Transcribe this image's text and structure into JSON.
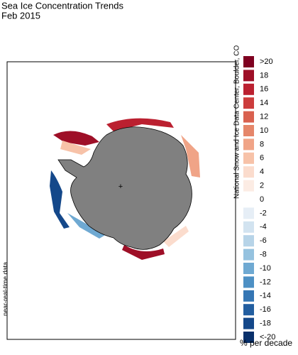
{
  "title": "Sea Ice Concentration Trends",
  "subtitle": "Feb 2015",
  "credit": "National Snow and Ice Data Center, Boulder, CO",
  "note": "near-real-time data",
  "legend": {
    "unit": "% per decade",
    "items": [
      {
        "label": ">20",
        "color": "#7f0020"
      },
      {
        "label": "18",
        "color": "#9e0f27"
      },
      {
        "label": "16",
        "color": "#bb2030"
      },
      {
        "label": "14",
        "color": "#cc3c3c"
      },
      {
        "label": "12",
        "color": "#d9614f"
      },
      {
        "label": "10",
        "color": "#e5866a"
      },
      {
        "label": "8",
        "color": "#f0a487"
      },
      {
        "label": "6",
        "color": "#f7c2a8"
      },
      {
        "label": "4",
        "color": "#fbdccd"
      },
      {
        "label": "2",
        "color": "#fcece4"
      },
      {
        "label": "0",
        "color": "#ffffff"
      },
      {
        "label": "-2",
        "color": "#e6eef6"
      },
      {
        "label": "-4",
        "color": "#d2e3f0"
      },
      {
        "label": "-6",
        "color": "#b7d4e8"
      },
      {
        "label": "-8",
        "color": "#95c2df"
      },
      {
        "label": "-10",
        "color": "#6fa9d2"
      },
      {
        "label": "-12",
        "color": "#4d90c4"
      },
      {
        "label": "-14",
        "color": "#3576b4"
      },
      {
        "label": "-16",
        "color": "#225ea0"
      },
      {
        "label": "-18",
        "color": "#14488a"
      },
      {
        "label": "<-20",
        "color": "#08306b"
      }
    ]
  }
}
